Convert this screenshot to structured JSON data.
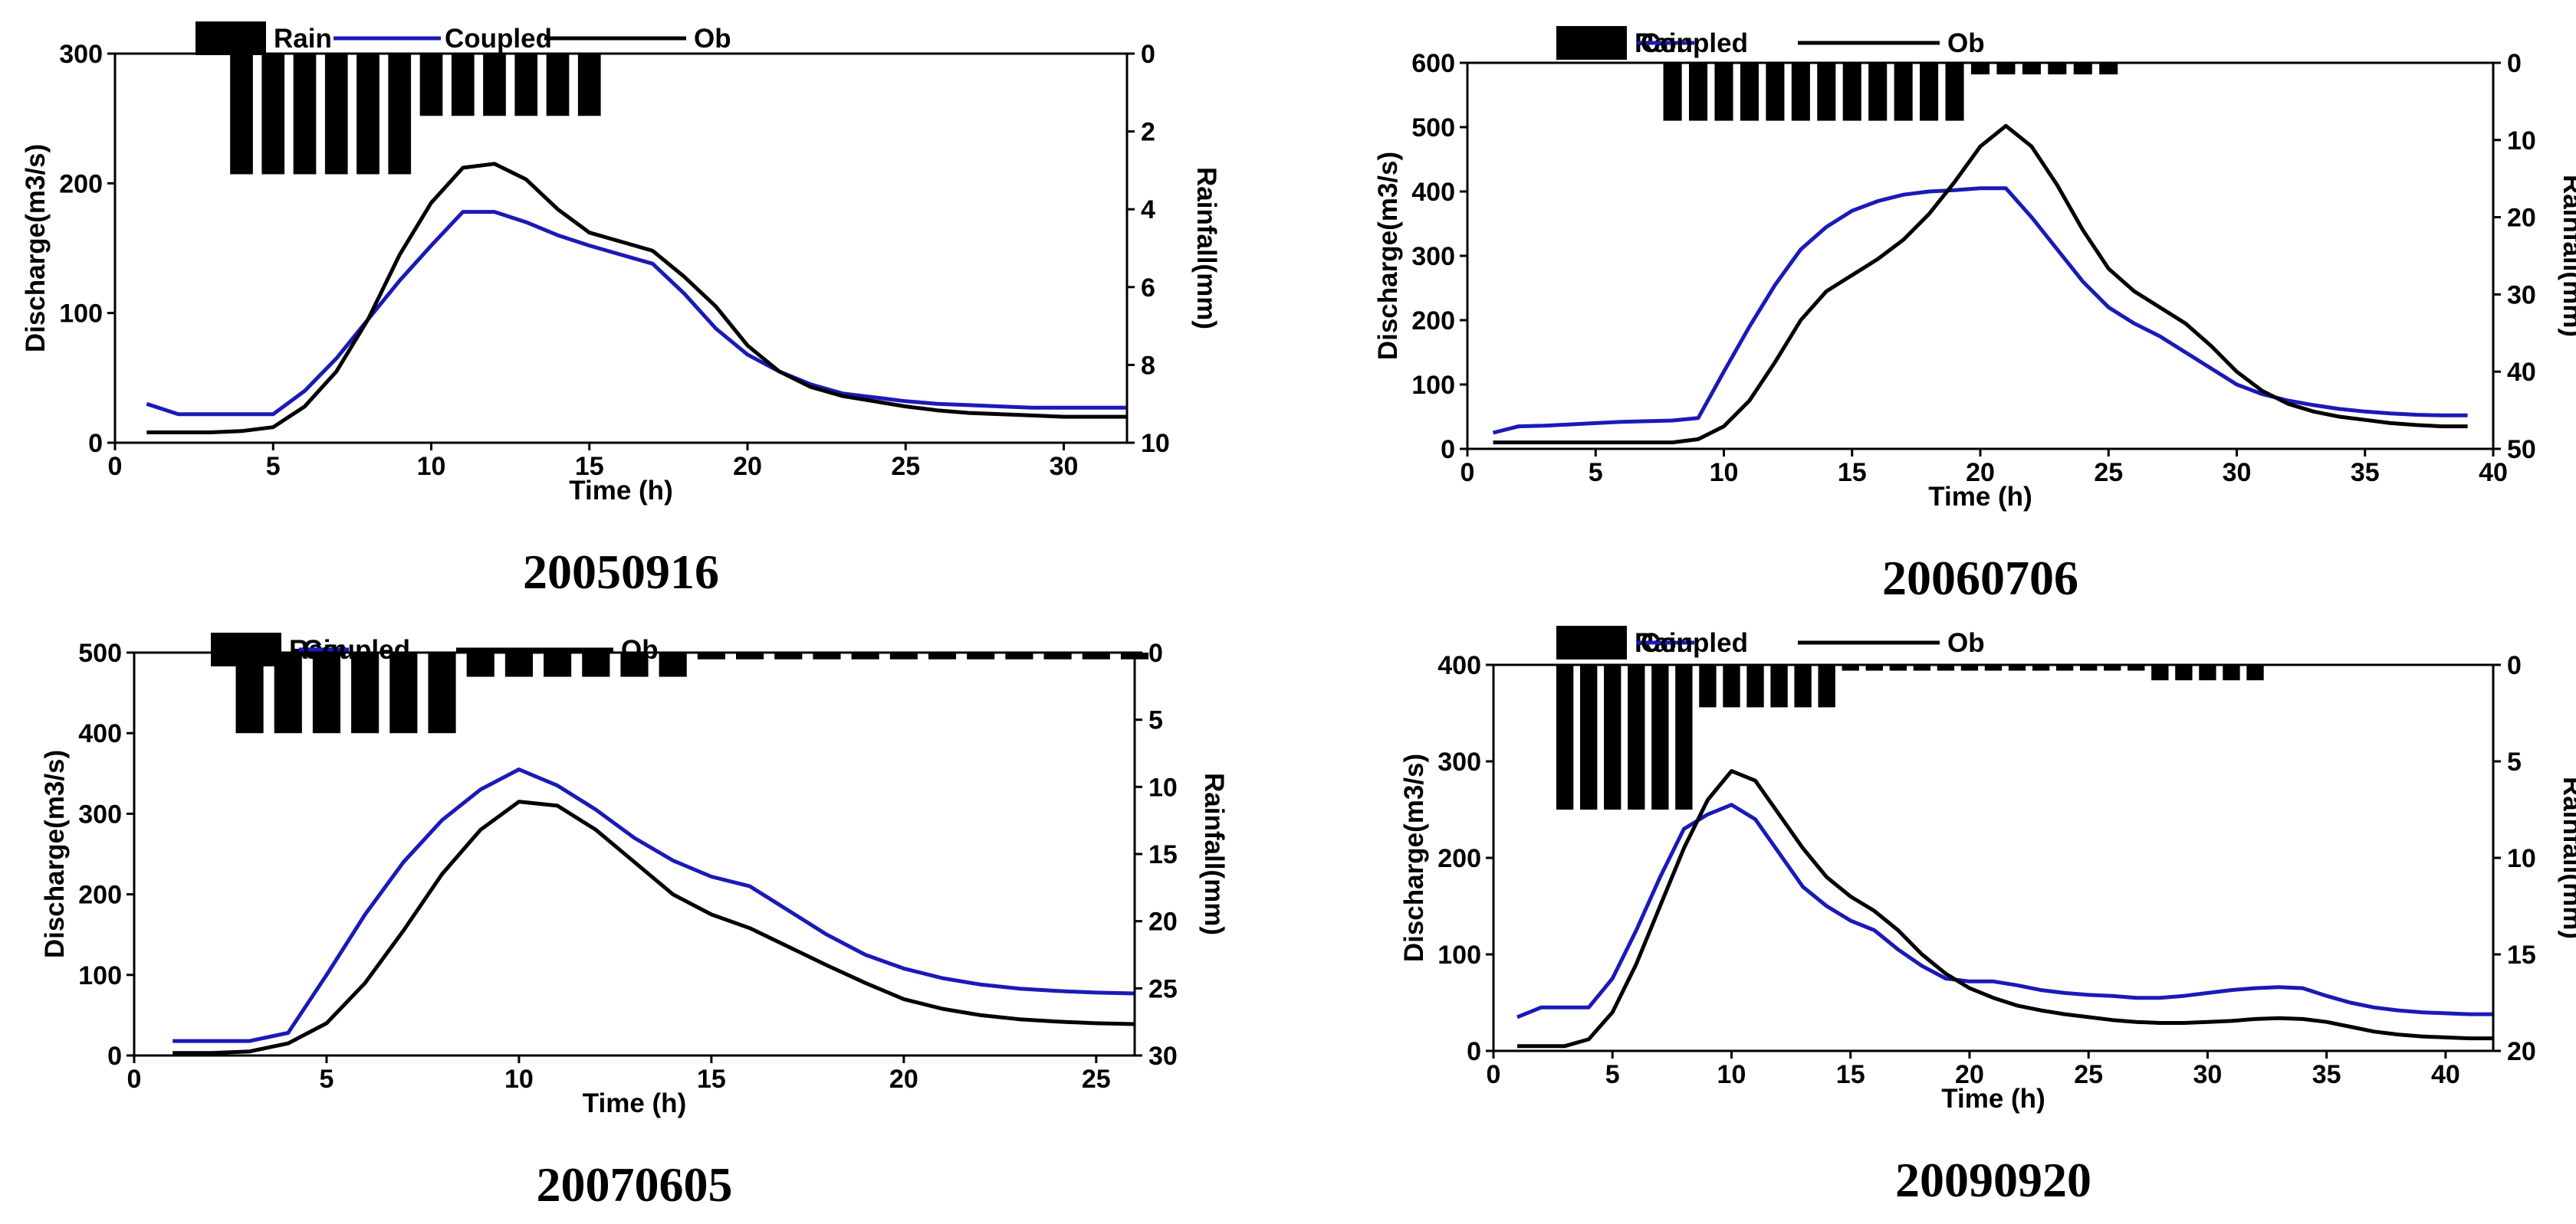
{
  "chart_data": [
    {
      "type": "line",
      "event_label": "20050916",
      "xlabel": "Time (h)",
      "ylabel_left": "Discharge(m3/s)",
      "ylabel_right": "Rainfall(mm)",
      "xlim": [
        0,
        32
      ],
      "ylim_left": [
        0,
        300
      ],
      "ylim_right": [
        0,
        10
      ],
      "right_axis_inverted": true,
      "x_ticks": [
        0,
        5,
        10,
        15,
        20,
        25,
        30
      ],
      "y_ticks_left": [
        0,
        100,
        200,
        300
      ],
      "y_ticks_right": [
        0,
        2,
        4,
        6,
        8,
        10
      ],
      "legend": [
        "Rain",
        "Coupled",
        "Ob"
      ],
      "legend_position": "top",
      "colors": {
        "Coupled": "#1a1ab8",
        "Ob": "#000000",
        "Rain": "#000000"
      },
      "rain": {
        "name": "Rain",
        "x": [
          4,
          5,
          6,
          7,
          8,
          9,
          10,
          11,
          12,
          13,
          14,
          15
        ],
        "values": [
          3.1,
          3.1,
          3.1,
          3.1,
          3.1,
          3.1,
          1.6,
          1.6,
          1.6,
          1.6,
          1.6,
          1.6
        ]
      },
      "series": [
        {
          "name": "Coupled",
          "x": [
            1,
            2,
            3,
            4,
            5,
            6,
            7,
            8,
            9,
            10,
            11,
            12,
            13,
            14,
            15,
            16,
            17,
            18,
            19,
            20,
            21,
            22,
            23,
            24,
            25,
            26,
            27,
            28,
            29,
            30,
            31,
            32
          ],
          "values": [
            30,
            22,
            22,
            22,
            22,
            40,
            65,
            95,
            125,
            152,
            178,
            178,
            170,
            160,
            152,
            145,
            138,
            115,
            88,
            68,
            55,
            45,
            38,
            35,
            32,
            30,
            29,
            28,
            27,
            27,
            27,
            27
          ]
        },
        {
          "name": "Ob",
          "x": [
            1,
            2,
            3,
            4,
            5,
            6,
            7,
            8,
            9,
            10,
            11,
            12,
            13,
            14,
            15,
            16,
            17,
            18,
            19,
            20,
            21,
            22,
            23,
            24,
            25,
            26,
            27,
            28,
            29,
            30,
            31,
            32
          ],
          "values": [
            8,
            8,
            8,
            9,
            12,
            28,
            55,
            95,
            145,
            185,
            212,
            215,
            203,
            180,
            162,
            155,
            148,
            128,
            105,
            75,
            55,
            43,
            36,
            32,
            28,
            25,
            23,
            22,
            21,
            20,
            20,
            20
          ]
        }
      ]
    },
    {
      "type": "line",
      "event_label": "20060706",
      "xlabel": "Time (h)",
      "ylabel_left": "Discharge(m3/s)",
      "ylabel_right": "Rainfall(mm)",
      "xlim": [
        0,
        40
      ],
      "ylim_left": [
        0,
        600
      ],
      "ylim_right": [
        0,
        50
      ],
      "right_axis_inverted": true,
      "x_ticks": [
        0,
        5,
        10,
        15,
        20,
        25,
        30,
        35,
        40
      ],
      "y_ticks_left": [
        0,
        100,
        200,
        300,
        400,
        500,
        600
      ],
      "y_ticks_right": [
        0,
        10,
        20,
        30,
        40,
        50
      ],
      "legend": [
        "Rain",
        "Coupled",
        "Ob"
      ],
      "legend_position": "top",
      "colors": {
        "Coupled": "#1a1ab8",
        "Ob": "#000000",
        "Rain": "#000000"
      },
      "rain": {
        "name": "Rain",
        "x": [
          8,
          9,
          10,
          11,
          12,
          13,
          14,
          15,
          16,
          17,
          18,
          19,
          20,
          21,
          22,
          23,
          24,
          25
        ],
        "values": [
          7.5,
          7.5,
          7.5,
          7.5,
          7.5,
          7.5,
          7.5,
          7.5,
          7.5,
          7.5,
          7.5,
          7.5,
          1.5,
          1.5,
          1.5,
          1.5,
          1.5,
          1.5
        ]
      },
      "series": [
        {
          "name": "Coupled",
          "x": [
            1,
            2,
            3,
            4,
            5,
            6,
            7,
            8,
            9,
            10,
            11,
            12,
            13,
            14,
            15,
            16,
            17,
            18,
            19,
            20,
            21,
            22,
            23,
            24,
            25,
            26,
            27,
            28,
            29,
            30,
            31,
            32,
            33,
            34,
            35,
            36,
            37,
            38,
            39
          ],
          "values": [
            25,
            35,
            36,
            38,
            40,
            42,
            43,
            44,
            48,
            120,
            190,
            255,
            310,
            345,
            370,
            385,
            395,
            400,
            402,
            405,
            405,
            360,
            310,
            260,
            220,
            195,
            175,
            150,
            125,
            100,
            85,
            75,
            68,
            62,
            58,
            55,
            53,
            52,
            52
          ]
        },
        {
          "name": "Ob",
          "x": [
            1,
            2,
            3,
            4,
            5,
            6,
            7,
            8,
            9,
            10,
            11,
            12,
            13,
            14,
            15,
            16,
            17,
            18,
            19,
            20,
            21,
            22,
            23,
            24,
            25,
            26,
            27,
            28,
            29,
            30,
            31,
            32,
            33,
            34,
            35,
            36,
            37,
            38,
            39
          ],
          "values": [
            10,
            10,
            10,
            10,
            10,
            10,
            10,
            10,
            15,
            35,
            75,
            135,
            200,
            245,
            270,
            295,
            325,
            365,
            415,
            470,
            502,
            470,
            410,
            340,
            280,
            245,
            220,
            195,
            160,
            120,
            90,
            70,
            58,
            50,
            45,
            40,
            37,
            35,
            35
          ]
        }
      ]
    },
    {
      "type": "line",
      "event_label": "20070605",
      "xlabel": "Time (h)",
      "ylabel_left": "Discharge(m3/s)",
      "ylabel_right": "Rainfall(mm)",
      "xlim": [
        0,
        26
      ],
      "ylim_left": [
        0,
        500
      ],
      "ylim_right": [
        0,
        30
      ],
      "right_axis_inverted": true,
      "x_ticks": [
        0,
        5,
        10,
        15,
        20,
        25
      ],
      "y_ticks_left": [
        0,
        100,
        200,
        300,
        400,
        500
      ],
      "y_ticks_right": [
        0,
        5,
        10,
        15,
        20,
        25,
        30
      ],
      "legend": [
        "Rain",
        "Coupled",
        "Ob"
      ],
      "legend_position": "top",
      "colors": {
        "Coupled": "#1a1ab8",
        "Ob": "#000000",
        "Rain": "#000000"
      },
      "rain": {
        "name": "Rain",
        "x": [
          3,
          4,
          5,
          6,
          7,
          8,
          9,
          10,
          11,
          12,
          13,
          14,
          15,
          16,
          17,
          18,
          19,
          20,
          21,
          22,
          23,
          24,
          25,
          26
        ],
        "values": [
          6,
          6,
          6,
          6,
          6,
          6,
          1.8,
          1.8,
          1.8,
          1.8,
          1.8,
          1.8,
          0.5,
          0.5,
          0.5,
          0.5,
          0.5,
          0.5,
          0.5,
          0.5,
          0.5,
          0.5,
          0.5,
          0.5
        ]
      },
      "series": [
        {
          "name": "Coupled",
          "x": [
            1,
            2,
            3,
            4,
            5,
            6,
            7,
            8,
            9,
            10,
            11,
            12,
            13,
            14,
            15,
            16,
            17,
            18,
            19,
            20,
            21,
            22,
            23,
            24,
            25,
            26
          ],
          "values": [
            18,
            18,
            18,
            28,
            100,
            175,
            240,
            292,
            330,
            355,
            335,
            305,
            270,
            242,
            222,
            210,
            180,
            150,
            125,
            108,
            96,
            88,
            83,
            80,
            78,
            77
          ]
        },
        {
          "name": "Ob",
          "x": [
            1,
            2,
            3,
            4,
            5,
            6,
            7,
            8,
            9,
            10,
            11,
            12,
            13,
            14,
            15,
            16,
            17,
            18,
            19,
            20,
            21,
            22,
            23,
            24,
            25,
            26
          ],
          "values": [
            3,
            3,
            5,
            15,
            40,
            90,
            155,
            225,
            280,
            315,
            310,
            280,
            240,
            200,
            175,
            158,
            135,
            112,
            90,
            70,
            58,
            50,
            45,
            42,
            40,
            39
          ]
        }
      ]
    },
    {
      "type": "line",
      "event_label": "20090920",
      "xlabel": "Time (h)",
      "ylabel_left": "Discharge(m3/s)",
      "ylabel_right": "Rainfall(mm)",
      "xlim": [
        0,
        42
      ],
      "ylim_left": [
        0,
        400
      ],
      "ylim_right": [
        0,
        20
      ],
      "right_axis_inverted": true,
      "x_ticks": [
        0,
        5,
        10,
        15,
        20,
        25,
        30,
        35,
        40
      ],
      "y_ticks_left": [
        0,
        100,
        200,
        300,
        400
      ],
      "y_ticks_right": [
        0,
        5,
        10,
        15,
        20
      ],
      "legend": [
        "Rain",
        "Coupled",
        "Ob"
      ],
      "legend_position": "top",
      "colors": {
        "Coupled": "#1a1ab8",
        "Ob": "#000000",
        "Rain": "#000000"
      },
      "rain": {
        "name": "Rain",
        "x": [
          3,
          4,
          5,
          6,
          7,
          8,
          9,
          10,
          11,
          12,
          13,
          14,
          15,
          16,
          17,
          18,
          19,
          20,
          21,
          22,
          23,
          24,
          25,
          26,
          27,
          28,
          29,
          30,
          31,
          32
        ],
        "values": [
          7.5,
          7.5,
          7.5,
          7.5,
          7.5,
          7.5,
          2.2,
          2.2,
          2.2,
          2.2,
          2.2,
          2.2,
          0.3,
          0.3,
          0.3,
          0.3,
          0.3,
          0.3,
          0.3,
          0.3,
          0.3,
          0.3,
          0.3,
          0.3,
          0.3,
          0.8,
          0.8,
          0.8,
          0.8,
          0.8
        ]
      },
      "series": [
        {
          "name": "Coupled",
          "x": [
            1,
            2,
            3,
            4,
            5,
            6,
            7,
            8,
            9,
            10,
            11,
            12,
            13,
            14,
            15,
            16,
            17,
            18,
            19,
            20,
            21,
            22,
            23,
            24,
            25,
            26,
            27,
            28,
            29,
            30,
            31,
            32,
            33,
            34,
            35,
            36,
            37,
            38,
            39,
            40,
            41,
            42
          ],
          "values": [
            35,
            45,
            45,
            45,
            75,
            125,
            180,
            230,
            245,
            255,
            240,
            205,
            170,
            150,
            135,
            125,
            105,
            88,
            75,
            72,
            72,
            68,
            63,
            60,
            58,
            57,
            55,
            55,
            57,
            60,
            63,
            65,
            66,
            65,
            57,
            50,
            45,
            42,
            40,
            39,
            38,
            38
          ]
        },
        {
          "name": "Ob",
          "x": [
            1,
            2,
            3,
            4,
            5,
            6,
            7,
            8,
            9,
            10,
            11,
            12,
            13,
            14,
            15,
            16,
            17,
            18,
            19,
            20,
            21,
            22,
            23,
            24,
            25,
            26,
            27,
            28,
            29,
            30,
            31,
            32,
            33,
            34,
            35,
            36,
            37,
            38,
            39,
            40,
            41,
            42
          ],
          "values": [
            5,
            5,
            5,
            12,
            40,
            90,
            150,
            210,
            260,
            290,
            280,
            245,
            210,
            180,
            160,
            145,
            125,
            100,
            80,
            65,
            55,
            47,
            42,
            38,
            35,
            32,
            30,
            29,
            29,
            30,
            31,
            33,
            34,
            33,
            30,
            25,
            20,
            17,
            15,
            14,
            13,
            13
          ]
        }
      ]
    }
  ]
}
